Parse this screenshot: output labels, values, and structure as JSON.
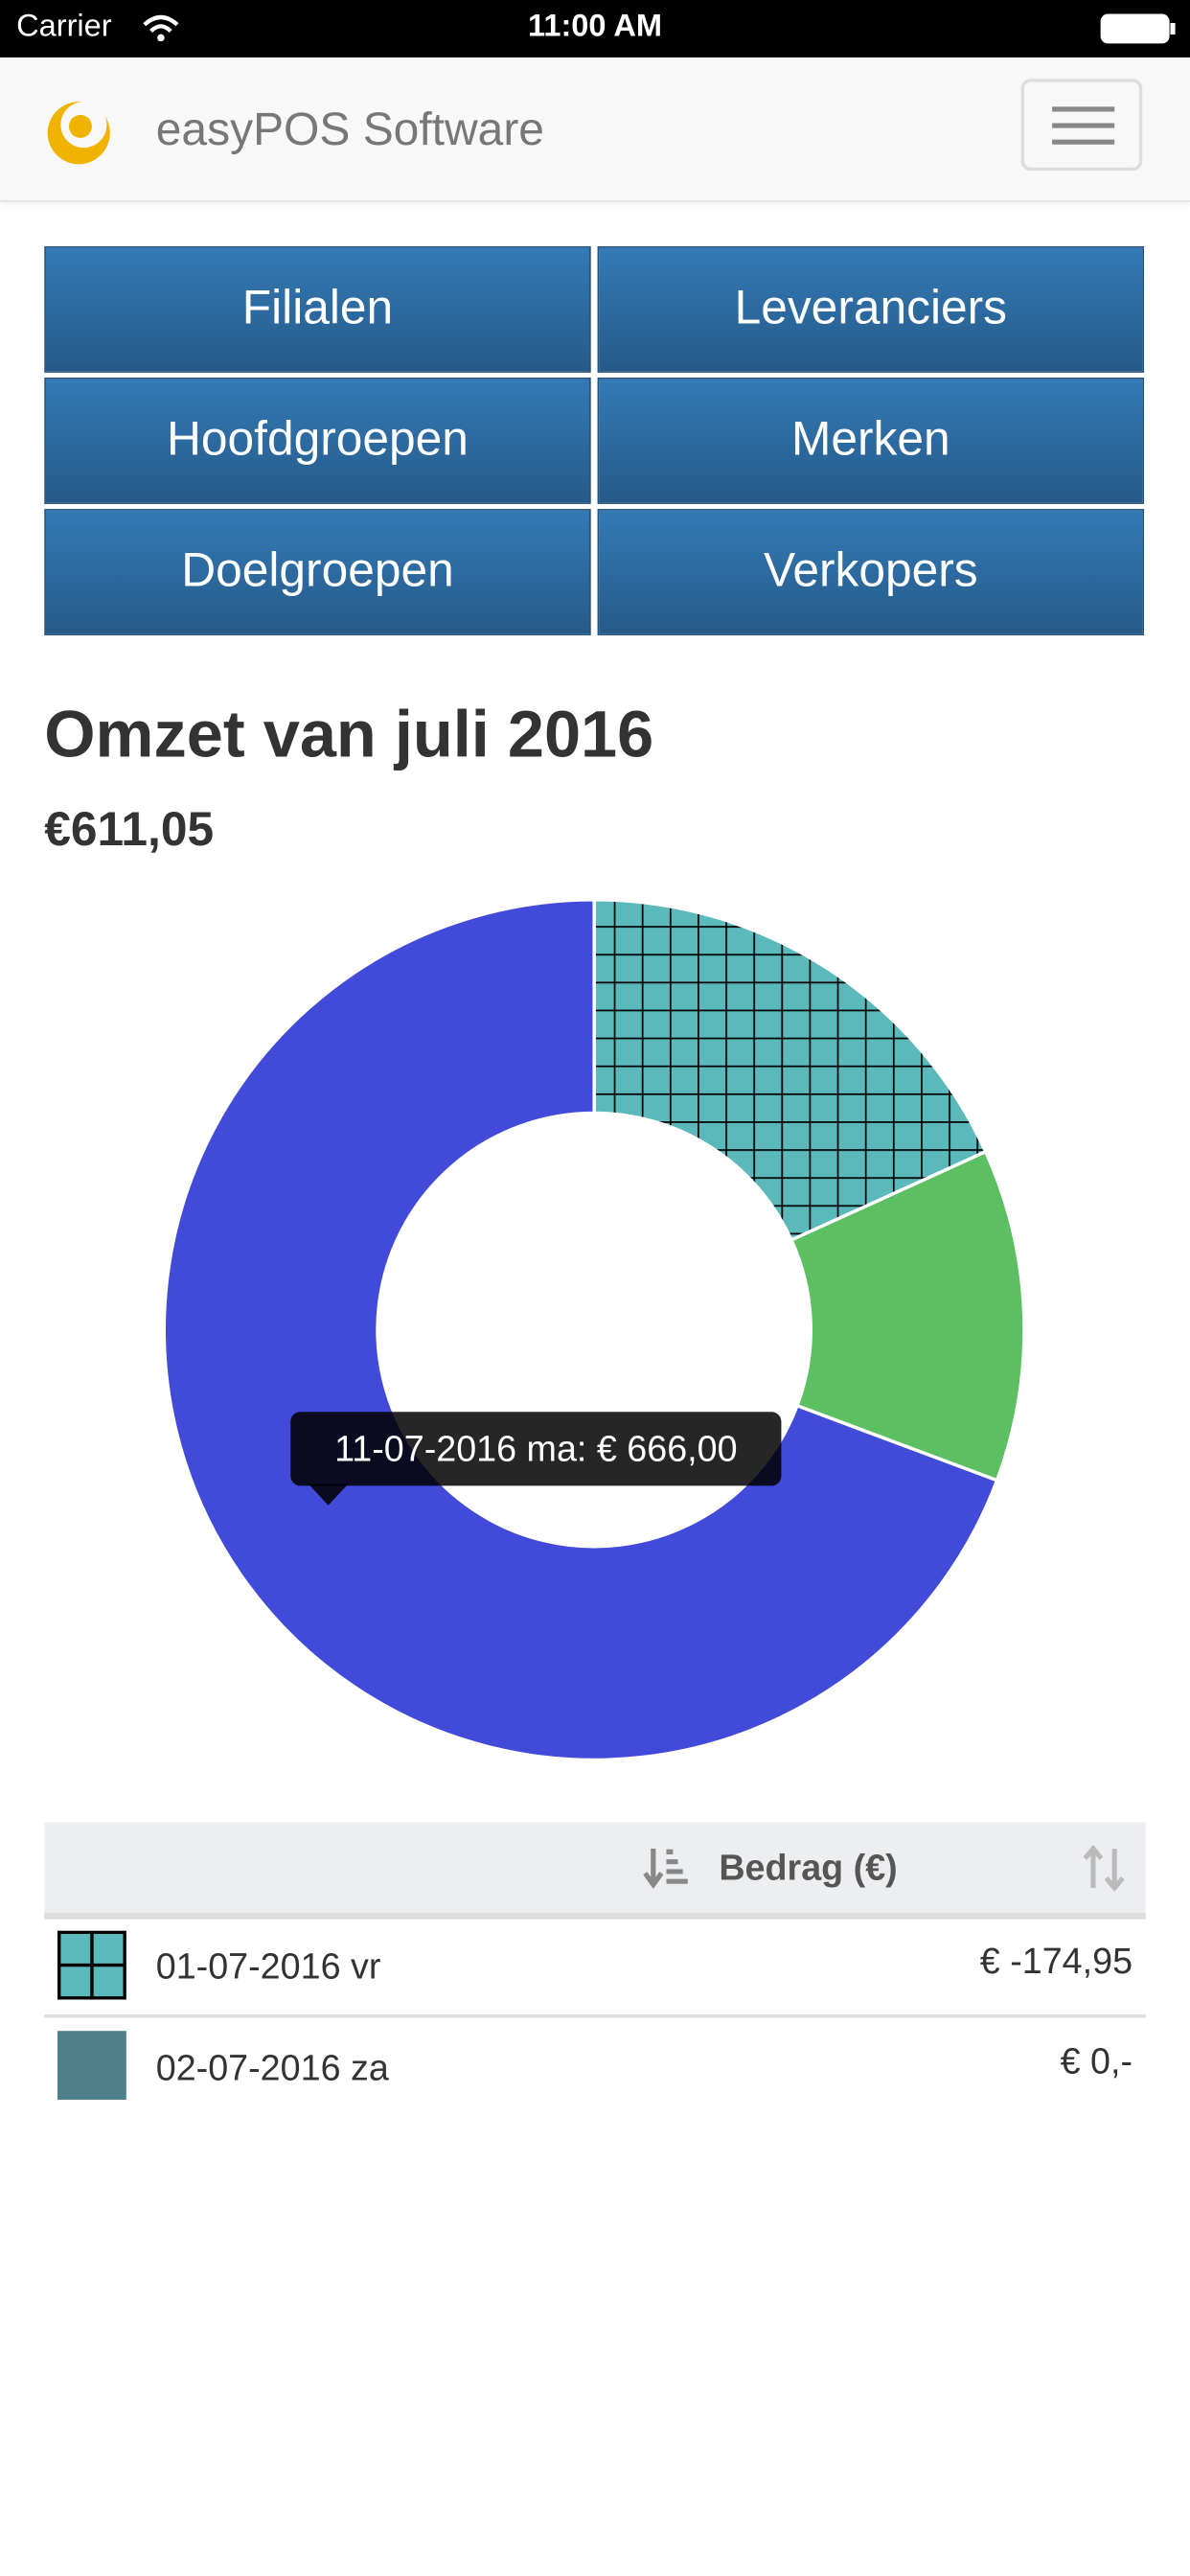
{
  "status_bar": {
    "carrier": "Carrier",
    "time": "11:00 AM"
  },
  "header": {
    "title": "easyPOS Software"
  },
  "buttons": [
    "Filialen",
    "Leveranciers",
    "Hoofdgroepen",
    "Merken",
    "Doelgroepen",
    "Verkopers"
  ],
  "summary": {
    "title": "Omzet van juli 2016",
    "total": "€611,05"
  },
  "chart_data": {
    "type": "donut",
    "values": [
      -174.95,
      120,
      666
    ],
    "colors": [
      "#5bb8bb",
      "#5cbf62",
      "#424bd9"
    ],
    "patterns": [
      "grid",
      null,
      null
    ],
    "tooltip": "11-07-2016 ma: € 666,00"
  },
  "table": {
    "header": "Bedrag (€)",
    "rows": [
      [
        "01-07-2016 vr",
        "€ -174,95"
      ],
      [
        "02-07-2016 za",
        "€ 0,-"
      ]
    ]
  }
}
